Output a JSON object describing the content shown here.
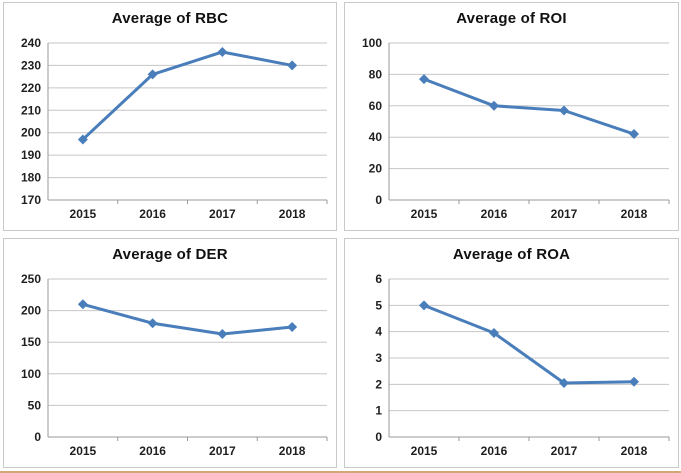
{
  "colors": {
    "line": "#4a7ebb",
    "grid": "#c6c6c6",
    "axis": "#9a9a9a",
    "panel_border": "#c9c9c9",
    "page_bottom_accent": "#d2a679",
    "title_text": "#111111",
    "tick_text": "#1f1f1f"
  },
  "chart_data": [
    {
      "type": "line",
      "title": "Average of RBC",
      "categories": [
        "2015",
        "2016",
        "2017",
        "2018"
      ],
      "values": [
        197,
        226,
        236,
        230
      ],
      "ylim": [
        170,
        240
      ],
      "yticks": [
        170,
        180,
        190,
        200,
        210,
        220,
        230,
        240
      ],
      "xlabel": "",
      "ylabel": "",
      "grid": true,
      "legend": "none",
      "line_color": "#4a7ebb",
      "marker": "diamond"
    },
    {
      "type": "line",
      "title": "Average of ROI",
      "categories": [
        "2015",
        "2016",
        "2017",
        "2018"
      ],
      "values": [
        77,
        60,
        57,
        42
      ],
      "ylim": [
        0,
        100
      ],
      "yticks": [
        0,
        20,
        40,
        60,
        80,
        100
      ],
      "xlabel": "",
      "ylabel": "",
      "grid": true,
      "legend": "none",
      "line_color": "#4a7ebb",
      "marker": "diamond"
    },
    {
      "type": "line",
      "title": "Average of DER",
      "categories": [
        "2015",
        "2016",
        "2017",
        "2018"
      ],
      "values": [
        210,
        180,
        163,
        174
      ],
      "ylim": [
        0,
        250
      ],
      "yticks": [
        0,
        50,
        100,
        150,
        200,
        250
      ],
      "xlabel": "",
      "ylabel": "",
      "grid": true,
      "legend": "none",
      "line_color": "#4a7ebb",
      "marker": "diamond"
    },
    {
      "type": "line",
      "title": "Average of ROA",
      "categories": [
        "2015",
        "2016",
        "2017",
        "2018"
      ],
      "values": [
        5.0,
        3.95,
        2.05,
        2.1
      ],
      "ylim": [
        0,
        6
      ],
      "yticks": [
        0,
        1,
        2,
        3,
        4,
        5,
        6
      ],
      "xlabel": "",
      "ylabel": "",
      "grid": true,
      "legend": "none",
      "line_color": "#4a7ebb",
      "marker": "diamond"
    }
  ]
}
